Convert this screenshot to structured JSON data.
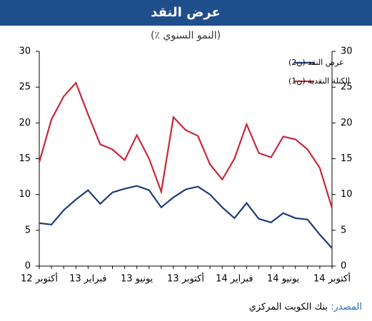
{
  "chart_data": {
    "type": "line",
    "title": "عرض النقد",
    "subtitle": "(٪ النمو السنوي)",
    "source_label": "المصدر:",
    "source_text": "بنك الكويت المركزي",
    "categories": [
      "أكتوبر 12",
      null,
      null,
      null,
      "فبراير 13",
      null,
      null,
      null,
      "يونيو 13",
      null,
      null,
      null,
      "أكتوبر 13",
      null,
      null,
      null,
      "فبراير 14",
      null,
      null,
      null,
      "يونيو 14",
      null,
      null,
      null,
      "أكتوبر 14"
    ],
    "series": [
      {
        "name": "عرض النقد (ن2)",
        "color": "#1f3a7a",
        "values": [
          6,
          5.8,
          7.8,
          9.3,
          10.6,
          8.7,
          10.3,
          10.8,
          11.2,
          10.6,
          8.2,
          9.6,
          10.7,
          11.1,
          10,
          8.2,
          6.7,
          8.8,
          6.6,
          6.1,
          7.4,
          6.7,
          6.5,
          4.4,
          2.5
        ]
      },
      {
        "name": "الكتلة النقدية (ن1)",
        "color": "#c8283c",
        "values": [
          14.5,
          20.5,
          23.7,
          25.6,
          21.2,
          17,
          16.3,
          14.8,
          18.3,
          15,
          10.4,
          20.8,
          19,
          18.2,
          14.2,
          12.1,
          15,
          19.8,
          15.8,
          15.2,
          18.1,
          17.7,
          16.3,
          13.7,
          8.1
        ]
      }
    ],
    "ylim": [
      0,
      30
    ],
    "yticks": [
      0,
      5,
      10,
      15,
      20,
      25,
      30
    ],
    "y2lim": [
      0,
      30
    ],
    "y2ticks": [
      0,
      5,
      10,
      15,
      20,
      25,
      30
    ],
    "grid": false
  }
}
